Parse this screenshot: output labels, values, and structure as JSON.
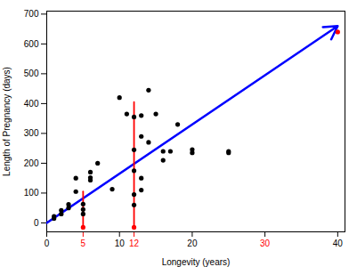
{
  "chart_data": {
    "type": "scatter",
    "xlabel": "Longevity (years)",
    "ylabel": "Length of Pregnancy (days)",
    "xlim": [
      0,
      41
    ],
    "ylim": [
      -30,
      710
    ],
    "xticks": [
      0,
      5,
      10,
      12,
      20,
      30,
      40
    ],
    "xtick_colors": [
      "#000000",
      "#FF0000",
      "#000000",
      "#FF0000",
      "#000000",
      "#000000",
      "#000000"
    ],
    "yticks": [
      0,
      100,
      200,
      300,
      400,
      500,
      600,
      700
    ],
    "grid": false,
    "series": [
      {
        "type": "arrow",
        "color": "#0000FF",
        "x": [
          0,
          40
        ],
        "values": [
          0,
          660
        ]
      },
      {
        "type": "line",
        "color": "#FF0000",
        "x": [
          5,
          5
        ],
        "values": [
          -15,
          105
        ]
      },
      {
        "type": "line",
        "color": "#FF0000",
        "x": [
          12,
          12
        ],
        "values": [
          -15,
          405
        ]
      },
      {
        "type": "scatter",
        "color": "#000000",
        "x": [
          1,
          1,
          2,
          2,
          3,
          3,
          4,
          4,
          5,
          5,
          5,
          6,
          6,
          6,
          7,
          9,
          10,
          11,
          12,
          12,
          12,
          12,
          12,
          13,
          13,
          13,
          13,
          14,
          14,
          15,
          16,
          16,
          17,
          18,
          20,
          20,
          25,
          25
        ],
        "values": [
          15,
          22,
          30,
          42,
          62,
          50,
          105,
          150,
          63,
          45,
          30,
          170,
          152,
          143,
          200,
          113,
          420,
          365,
          355,
          245,
          175,
          95,
          60,
          360,
          290,
          150,
          110,
          445,
          270,
          365,
          240,
          210,
          240,
          330,
          235,
          246,
          240,
          235
        ]
      },
      {
        "type": "scatter",
        "color": "#FF0000",
        "x": [
          5,
          12,
          40
        ],
        "values": [
          -15,
          -15,
          640
        ]
      }
    ]
  }
}
